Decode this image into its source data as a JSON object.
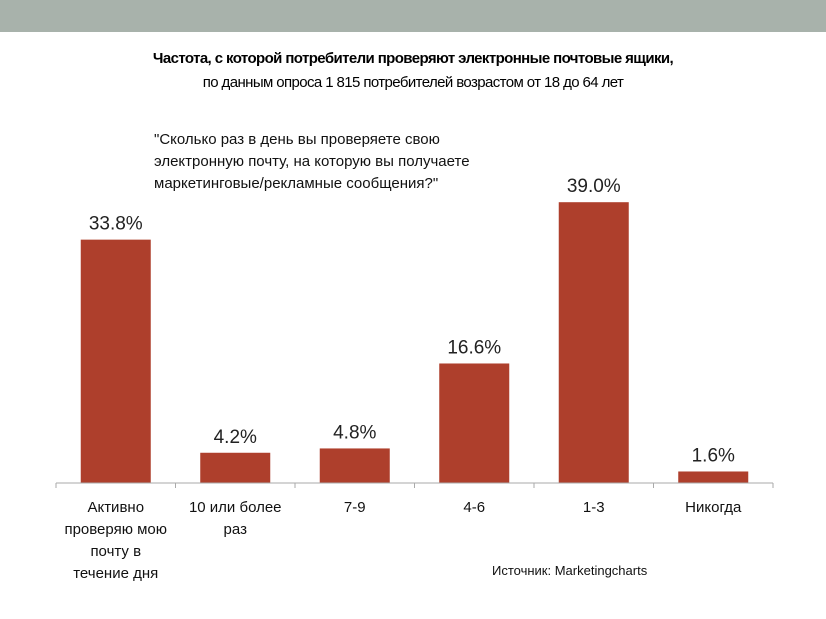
{
  "header": {
    "title": "Частота, с которой потребители проверяют электронные почтовые ящики,",
    "subtitle": "по данным опроса 1 815 потребителей возрастом от 18 до 64 лет"
  },
  "question_lines": [
    "\"Сколько раз в день вы проверяете свою",
    "электронную почту, на которую вы получаете",
    "маркетинговые/рекламные сообщения?\""
  ],
  "source": "Источник: Marketingcharts",
  "colors": {
    "bar": "#ae3f2c",
    "header_bar": "#a8b2ab",
    "axis": "#aaaaaa"
  },
  "chart_data": {
    "type": "bar",
    "title": "Частота, с которой потребители проверяют электронные почтовые ящики",
    "categories": [
      [
        "Активно",
        "проверяю мою",
        "почту в",
        "течение дня"
      ],
      [
        "10 или более",
        "раз"
      ],
      [
        "7-9"
      ],
      [
        "4-6"
      ],
      [
        "1-3"
      ],
      [
        "Никогда"
      ]
    ],
    "values": [
      33.8,
      4.2,
      4.8,
      16.6,
      39.0,
      1.6
    ],
    "data_labels": [
      "33.8%",
      "4.2%",
      "4.8%",
      "16.6%",
      "39.0%",
      "1.6%"
    ],
    "ylim": [
      0,
      40
    ],
    "grid": false,
    "xlabel": "",
    "ylabel": ""
  }
}
